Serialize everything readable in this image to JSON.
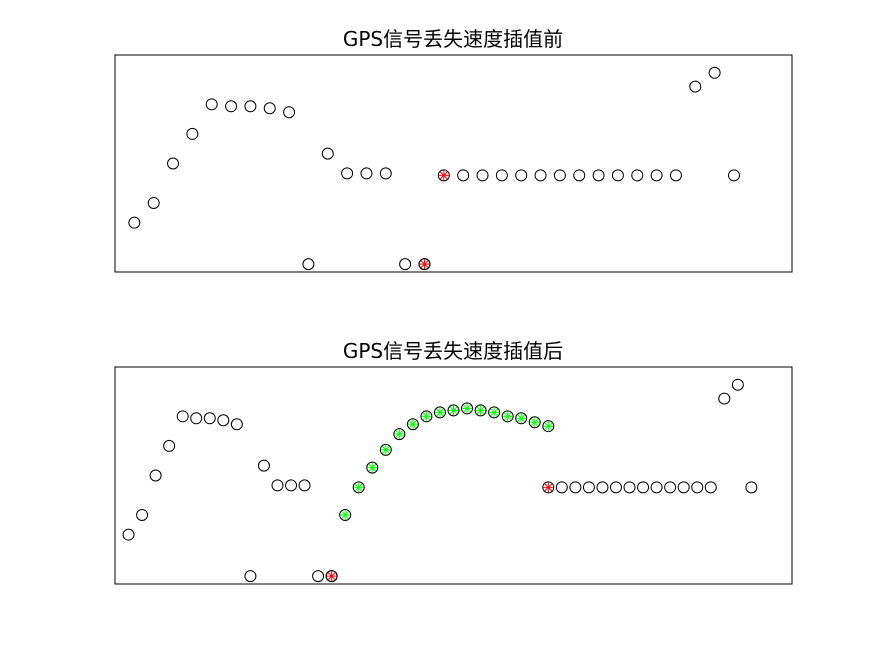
{
  "chart_data": [
    {
      "type": "scatter",
      "title": "GPS信号丢失速度插值前",
      "xlabel": "",
      "ylabel": "",
      "grid": false,
      "colors": {
        "normal": "#000000",
        "endpoint": "#ff0000"
      },
      "series": [
        {
          "marker": "open-circle",
          "points": [
            [
              1,
              1.5
            ],
            [
              2,
              2.5
            ],
            [
              3,
              4.5
            ],
            [
              4,
              6
            ],
            [
              5,
              7.5
            ],
            [
              6,
              7.4
            ],
            [
              7,
              7.4
            ],
            [
              8,
              7.3
            ],
            [
              9,
              7.1
            ],
            [
              10,
              -0.6
            ],
            [
              11,
              5
            ],
            [
              12,
              4
            ],
            [
              13,
              4
            ],
            [
              14,
              4
            ],
            [
              15,
              -0.6
            ],
            [
              16,
              -0.6
            ],
            [
              18,
              3.9
            ],
            [
              19,
              3.9
            ],
            [
              20,
              3.9
            ],
            [
              21,
              3.9
            ],
            [
              22,
              3.9
            ],
            [
              23,
              3.9
            ],
            [
              24,
              3.9
            ],
            [
              25,
              3.9
            ],
            [
              26,
              3.9
            ],
            [
              27,
              3.9
            ],
            [
              28,
              3.9
            ],
            [
              29,
              3.9
            ],
            [
              30,
              8.4
            ],
            [
              31,
              9.1
            ],
            [
              32,
              3.9
            ]
          ]
        },
        {
          "marker": "circle-asterisk-red",
          "points": [
            [
              16,
              -0.6
            ],
            [
              17,
              3.9
            ]
          ]
        }
      ]
    },
    {
      "type": "scatter",
      "title": "GPS信号丢失速度插值后",
      "xlabel": "",
      "ylabel": "",
      "grid": false,
      "colors": {
        "normal": "#000000",
        "endpoint": "#ff0000",
        "interpolated": "#00ff00"
      },
      "series": [
        {
          "marker": "open-circle",
          "points": [
            [
              1,
              1.5
            ],
            [
              2,
              2.5
            ],
            [
              3,
              4.5
            ],
            [
              4,
              6
            ],
            [
              5,
              7.5
            ],
            [
              6,
              7.4
            ],
            [
              7,
              7.4
            ],
            [
              8,
              7.3
            ],
            [
              9,
              7.1
            ],
            [
              10,
              -0.6
            ],
            [
              11,
              5
            ],
            [
              12,
              4
            ],
            [
              13,
              4
            ],
            [
              14,
              4
            ],
            [
              15,
              -0.6
            ],
            [
              16,
              -0.6
            ],
            [
              33,
              3.9
            ],
            [
              34,
              3.9
            ],
            [
              35,
              3.9
            ],
            [
              36,
              3.9
            ],
            [
              37,
              3.9
            ],
            [
              38,
              3.9
            ],
            [
              39,
              3.9
            ],
            [
              40,
              3.9
            ],
            [
              41,
              3.9
            ],
            [
              42,
              3.9
            ],
            [
              43,
              3.9
            ],
            [
              44,
              3.9
            ],
            [
              45,
              8.4
            ],
            [
              46,
              9.1
            ],
            [
              47,
              3.9
            ]
          ]
        },
        {
          "marker": "circle-asterisk-red",
          "points": [
            [
              16,
              -0.6
            ],
            [
              32,
              3.9
            ]
          ]
        },
        {
          "marker": "circle-asterisk-green",
          "points": [
            [
              17,
              2.5
            ],
            [
              18,
              3.9
            ],
            [
              19,
              4.9
            ],
            [
              20,
              5.8
            ],
            [
              21,
              6.6
            ],
            [
              22,
              7.1
            ],
            [
              23,
              7.5
            ],
            [
              24,
              7.7
            ],
            [
              25,
              7.8
            ],
            [
              26,
              7.9
            ],
            [
              27,
              7.8
            ],
            [
              28,
              7.7
            ],
            [
              29,
              7.5
            ],
            [
              30,
              7.4
            ],
            [
              31,
              7.2
            ],
            [
              32,
              7.0
            ]
          ]
        }
      ]
    }
  ]
}
